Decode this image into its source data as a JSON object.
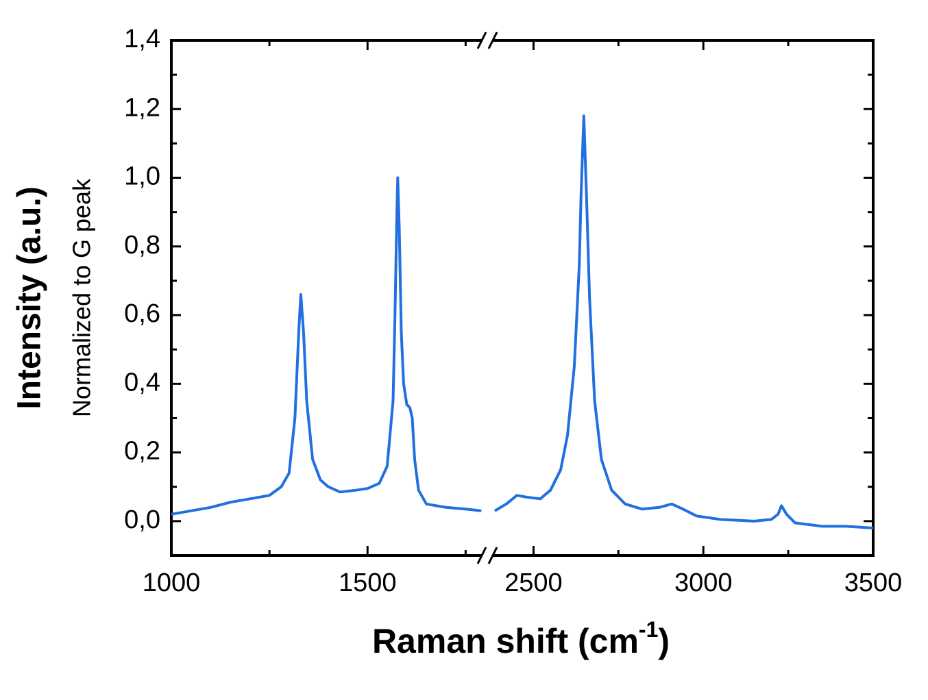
{
  "chart_data": {
    "type": "line",
    "xlabel": {
      "text": "Raman shift (cm",
      "sup": "-1",
      "end": ")"
    },
    "ylabel": "Intensity (a.u.)",
    "ylabel2": "Normalized to G peak",
    "x_segments": [
      {
        "xlim": [
          1000,
          1800
        ],
        "xticks": [
          1000,
          1500
        ],
        "xminor": [
          1250,
          1750
        ]
      },
      {
        "xlim": [
          2370,
          3500
        ],
        "xticks": [
          2500,
          3000,
          3500
        ],
        "xminor": [
          2750,
          3250
        ]
      }
    ],
    "ylim": [
      -0.1,
      1.4
    ],
    "yticks": [
      {
        "value": 0,
        "label": "0,0"
      },
      {
        "value": 0.2,
        "label": "0,2"
      },
      {
        "value": 0.4,
        "label": "0,4"
      },
      {
        "value": 0.6,
        "label": "0,6"
      },
      {
        "value": 0.8,
        "label": "0,8"
      },
      {
        "value": 1.0,
        "label": "1,0"
      },
      {
        "value": 1.2,
        "label": "1,2"
      },
      {
        "value": 1.4,
        "label": "1,4"
      }
    ],
    "yminor": [
      -0.1,
      0.1,
      0.3,
      0.5,
      0.7,
      0.9,
      1.1,
      1.3
    ],
    "series": [
      {
        "color": "#2270df",
        "x": [
          1000,
          1050,
          1100,
          1150,
          1200,
          1250,
          1280,
          1300,
          1315,
          1325,
          1330,
          1337,
          1345,
          1360,
          1380,
          1400,
          1430,
          1470,
          1500,
          1530,
          1550,
          1565,
          1570,
          1574,
          1577,
          1581,
          1586,
          1592,
          1600,
          1608,
          1614,
          1620,
          1630,
          1650,
          1700,
          1750,
          1790,
          2000,
          2386,
          2420,
          2451,
          2480,
          2520,
          2550,
          2580,
          2600,
          2620,
          2635,
          2640,
          2648,
          2656,
          2665,
          2680,
          2700,
          2730,
          2770,
          2820,
          2870,
          2907,
          2940,
          2980,
          3050,
          3150,
          3200,
          3220,
          3230,
          3245,
          3270,
          3350,
          3420,
          3500
        ],
        "values": [
          0.02,
          0.03,
          0.04,
          0.055,
          0.065,
          0.075,
          0.1,
          0.14,
          0.3,
          0.56,
          0.66,
          0.55,
          0.35,
          0.18,
          0.12,
          0.1,
          0.085,
          0.09,
          0.095,
          0.11,
          0.16,
          0.35,
          0.6,
          0.85,
          1.0,
          0.85,
          0.55,
          0.4,
          0.34,
          0.33,
          0.3,
          0.18,
          0.09,
          0.05,
          0.04,
          0.035,
          0.03,
          null,
          0.03,
          0.05,
          0.075,
          0.07,
          0.065,
          0.09,
          0.15,
          0.25,
          0.45,
          0.75,
          0.95,
          1.18,
          0.95,
          0.65,
          0.35,
          0.18,
          0.09,
          0.05,
          0.035,
          0.04,
          0.05,
          0.035,
          0.015,
          0.005,
          0.0,
          0.005,
          0.02,
          0.045,
          0.02,
          -0.005,
          -0.015,
          -0.015,
          -0.02
        ]
      }
    ]
  }
}
